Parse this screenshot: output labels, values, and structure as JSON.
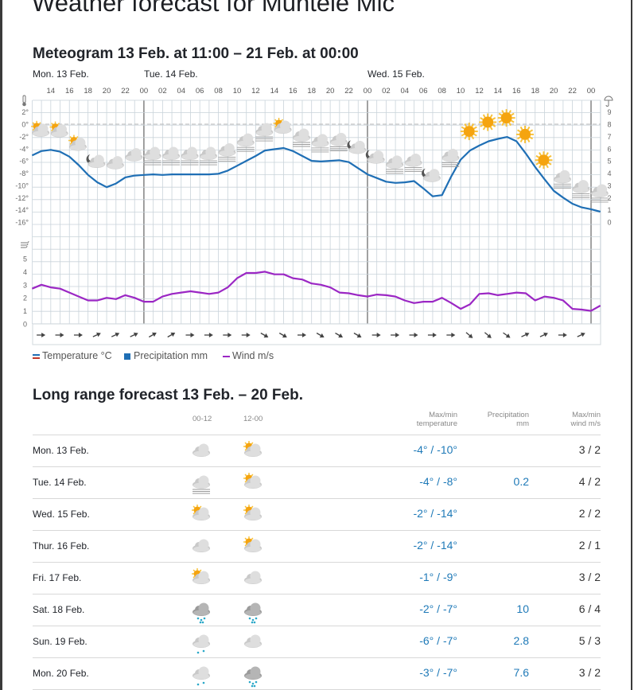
{
  "page": {
    "title": "Weather forecast for Muntele Mic"
  },
  "meteogram": {
    "title": "Meteogram 13 Feb. at 11:00 – 21 Feb. at 00:00",
    "days": [
      "Mon. 13 Feb.",
      "Tue. 14 Feb.",
      "Wed. 15 Feb."
    ],
    "legend": {
      "temperature": "Temperature °C",
      "precipitation": "Precipitation mm",
      "wind": "Wind m/s"
    },
    "colors": {
      "temperature": "#1f6fb5",
      "wind": "#9b27c4",
      "precipitation": "#1f6fb5",
      "sun": "#f5a40f"
    }
  },
  "chart_data": {
    "type": "line",
    "hours_start": 12,
    "x_tick_labels": [
      "14",
      "16",
      "18",
      "20",
      "22",
      "00",
      "02",
      "04",
      "06",
      "08",
      "10",
      "12",
      "14",
      "16",
      "18",
      "20",
      "22",
      "00",
      "02",
      "04",
      "06",
      "08",
      "10",
      "12",
      "14",
      "16",
      "18",
      "20",
      "22",
      "00"
    ],
    "temp_axis_labels": [
      "2°",
      "0°",
      "-2°",
      "-4°",
      "-6°",
      "-8°",
      "-10°",
      "-12°",
      "-14°",
      "-16°"
    ],
    "precip_axis_labels": [
      "9",
      "8",
      "7",
      "6",
      "5",
      "4",
      "3",
      "2",
      "1",
      "0"
    ],
    "wind_axis_labels": [
      "5",
      "4",
      "3",
      "2",
      "1",
      "0"
    ],
    "series": [
      {
        "name": "Temperature °C",
        "values": [
          -5.1,
          -4.4,
          -4.2,
          -4.5,
          -5.3,
          -6.7,
          -8.3,
          -9.5,
          -10.3,
          -9.7,
          -8.7,
          -8.4,
          -8.3,
          -8.2,
          -8.3,
          -8.2,
          -8.2,
          -8.2,
          -8.2,
          -8.2,
          -8.1,
          -7.6,
          -6.8,
          -6.0,
          -5.2,
          -4.3,
          -4.1,
          -3.9,
          -4.4,
          -5.2,
          -6.0,
          -6.1,
          -6.0,
          -5.9,
          -6.2,
          -7.2,
          -8.2,
          -8.8,
          -9.4,
          -9.6,
          -9.5,
          -9.3,
          -10.5,
          -11.8,
          -11.6,
          -8.5,
          -5.8,
          -4.3,
          -3.5,
          -2.8,
          -2.4,
          -2.1,
          -2.8,
          -4.8,
          -7.0,
          -9.0,
          -10.9,
          -12.0,
          -13.0,
          -13.6,
          -13.9,
          -14.3
        ]
      },
      {
        "name": "Wind m/s",
        "values": [
          2.7,
          3.0,
          2.8,
          2.7,
          2.4,
          2.1,
          1.8,
          1.8,
          2.0,
          1.9,
          2.2,
          2.0,
          1.7,
          1.7,
          2.1,
          2.3,
          2.4,
          2.5,
          2.4,
          2.3,
          2.4,
          2.8,
          3.5,
          3.9,
          3.9,
          4.0,
          3.8,
          3.8,
          3.5,
          3.4,
          3.1,
          3.0,
          2.8,
          2.4,
          2.35,
          2.2,
          2.1,
          2.25,
          2.2,
          2.1,
          1.8,
          1.6,
          1.7,
          1.7,
          2.0,
          1.6,
          1.15,
          1.5,
          2.3,
          2.35,
          2.2,
          2.3,
          2.4,
          2.35,
          1.8,
          2.1,
          2.0,
          1.8,
          1.15,
          1.1,
          1.0,
          1.4
        ]
      }
    ],
    "symbols": [
      "partly-sun",
      "partly-sun",
      "partly-sun",
      "moon-cloud",
      "cloud",
      "cloud",
      "fog-cloud",
      "fog-cloud",
      "fog-cloud",
      "fog-cloud",
      "fog-cloud",
      "fog-cloud",
      "fog-cloud",
      "partly-sun",
      "fog-cloud",
      "fog-cloud",
      "fog-cloud",
      "moon-cloud",
      "moon-cloud",
      "fog-cloud",
      "fog-cloud",
      "moon-cloud",
      "fog-cloud",
      "sun",
      "sun",
      "sun",
      "sun",
      "sun",
      "fog-cloud",
      "fog-cloud",
      "fog-cloud"
    ],
    "wind_directions_deg": [
      0,
      0,
      0,
      -25,
      -25,
      -25,
      -30,
      -30,
      0,
      0,
      0,
      0,
      30,
      30,
      0,
      30,
      30,
      30,
      0,
      0,
      0,
      0,
      0,
      40,
      40,
      35,
      -25,
      -25,
      0,
      -25
    ]
  },
  "long_range": {
    "title": "Long range forecast 13 Feb. – 20 Feb.",
    "headers": {
      "am": "00-12",
      "pm": "12-00",
      "temp1": "Max/min",
      "temp2": "temperature",
      "precip1": "Precipitation",
      "precip2": "mm",
      "wind1": "Max/min",
      "wind2": "wind m/s"
    },
    "rows": [
      {
        "day": "Mon. 13 Feb.",
        "am": "cloud",
        "pm": "partly-sun",
        "temp": "-4° / -10°",
        "precip": "",
        "wind": "3 / 2"
      },
      {
        "day": "Tue. 14 Feb.",
        "am": "fog-cloud",
        "pm": "partly-sun",
        "temp": "-4° / -8°",
        "precip": "0.2",
        "wind": "4 / 2"
      },
      {
        "day": "Wed. 15 Feb.",
        "am": "partly-sun",
        "pm": "partly-sun",
        "temp": "-2° / -14°",
        "precip": "",
        "wind": "2 / 2"
      },
      {
        "day": "Thur. 16 Feb.",
        "am": "cloud",
        "pm": "partly-sun",
        "temp": "-2° / -14°",
        "precip": "",
        "wind": "2 / 1"
      },
      {
        "day": "Fri. 17 Feb.",
        "am": "partly-sun",
        "pm": "cloud",
        "temp": "-1° / -9°",
        "precip": "",
        "wind": "3 / 2"
      },
      {
        "day": "Sat. 18 Feb.",
        "am": "snow-dark",
        "pm": "snow-dark",
        "temp": "-2° / -7°",
        "precip": "10",
        "wind": "6 / 4"
      },
      {
        "day": "Sun. 19 Feb.",
        "am": "snow-light",
        "pm": "cloud",
        "temp": "-6° / -7°",
        "precip": "2.8",
        "wind": "5 / 3"
      },
      {
        "day": "Mon. 20 Feb.",
        "am": "snow-light",
        "pm": "snow-dark",
        "temp": "-3° / -7°",
        "precip": "7.6",
        "wind": "3 / 2"
      }
    ]
  }
}
